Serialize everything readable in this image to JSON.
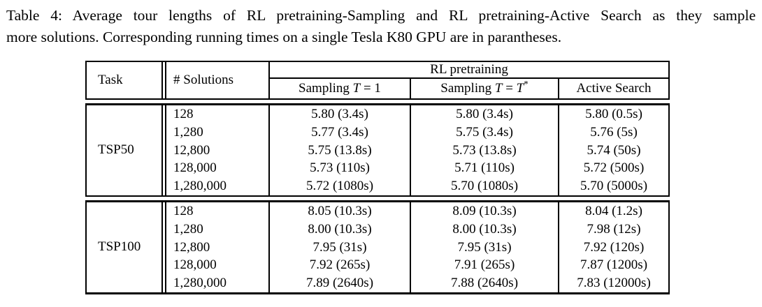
{
  "colors": {
    "text": "#000000",
    "background": "#ffffff",
    "rule": "#000000"
  },
  "caption": {
    "line1": "Table 4: Average tour lengths of RL pretraining-Sampling and RL pretraining-Active Search as they sample",
    "line2": "more solutions. Corresponding running times on a single Tesla K80 GPU are in parantheses."
  },
  "table": {
    "headers": {
      "task": "Task",
      "solutions": "# Solutions",
      "group": "RL pretraining",
      "sub": [
        {
          "p1": "Sampling ",
          "it1": "T",
          "p2": " = 1",
          "it2": "",
          "sup": ""
        },
        {
          "p1": "Sampling ",
          "it1": "T",
          "p2": " = ",
          "it2": "T",
          "sup": "*"
        },
        {
          "p1": "Active Search",
          "it1": "",
          "p2": "",
          "it2": "",
          "sup": ""
        }
      ]
    },
    "sections": [
      {
        "task": "TSP50",
        "rows": [
          {
            "solutions": "128",
            "sampling_t1": "5.80 (3.4s)",
            "sampling_tstar": "5.80 (3.4s)",
            "active_search": "5.80 (0.5s)"
          },
          {
            "solutions": "1,280",
            "sampling_t1": "5.77 (3.4s)",
            "sampling_tstar": "5.75 (3.4s)",
            "active_search": "5.76 (5s)"
          },
          {
            "solutions": "12,800",
            "sampling_t1": "5.75 (13.8s)",
            "sampling_tstar": "5.73 (13.8s)",
            "active_search": "5.74 (50s)"
          },
          {
            "solutions": "128,000",
            "sampling_t1": "5.73 (110s)",
            "sampling_tstar": "5.71 (110s)",
            "active_search": "5.72 (500s)"
          },
          {
            "solutions": "1,280,000",
            "sampling_t1": "5.72 (1080s)",
            "sampling_tstar": "5.70 (1080s)",
            "active_search": "5.70 (5000s)"
          }
        ]
      },
      {
        "task": "TSP100",
        "rows": [
          {
            "solutions": "128",
            "sampling_t1": "8.05 (10.3s)",
            "sampling_tstar": "8.09 (10.3s)",
            "active_search": "8.04 (1.2s)"
          },
          {
            "solutions": "1,280",
            "sampling_t1": "8.00 (10.3s)",
            "sampling_tstar": "8.00 (10.3s)",
            "active_search": "7.98 (12s)"
          },
          {
            "solutions": "12,800",
            "sampling_t1": "7.95 (31s)",
            "sampling_tstar": "7.95 (31s)",
            "active_search": "7.92 (120s)"
          },
          {
            "solutions": "128,000",
            "sampling_t1": "7.92 (265s)",
            "sampling_tstar": "7.91 (265s)",
            "active_search": "7.87 (1200s)"
          },
          {
            "solutions": "1,280,000",
            "sampling_t1": "7.89 (2640s)",
            "sampling_tstar": "7.88 (2640s)",
            "active_search": "7.83 (12000s)"
          }
        ]
      }
    ]
  }
}
